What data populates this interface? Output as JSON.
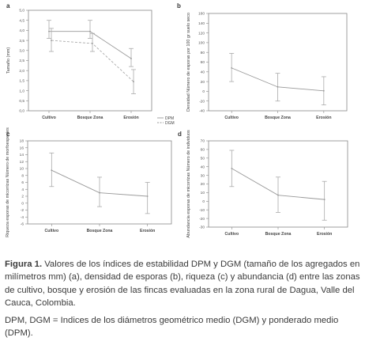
{
  "figure": {
    "caption_label": "Figura 1.",
    "caption_text": "Valores de los índices de estabilidad DPM y DGM (tamaño de los agregados en milímetros mm) (a), densidad de esporas (b), riqueza (c) y abundancia (d) entre las zonas de cultivo, bosque y erosión de las fincas evaluadas en la zona rural de Dagua, Valle del Cauca, Colombia.",
    "note": "DPM, DGM = Indices de los diámetros geométrico medio (DGM) y ponderado medio (DPM)."
  },
  "chart_data": [
    {
      "id": "a",
      "panel_label": "a",
      "type": "line",
      "ylabel": "Tamaño (mm)",
      "xlabel": "",
      "categories": [
        "Cultivo",
        "Bosque Zona",
        "Erosión"
      ],
      "ylim": [
        0,
        5
      ],
      "yticks": [
        "0,0",
        "0,5",
        "1,0",
        "1,5",
        "2,0",
        "2,5",
        "3,0",
        "3,5",
        "4,0",
        "4,5",
        "5,0"
      ],
      "legend": "right",
      "series": [
        {
          "name": "DPM",
          "values": [
            3.95,
            3.95,
            2.6
          ],
          "err_low": [
            3.6,
            3.6,
            2.2
          ],
          "err_high": [
            4.5,
            4.5,
            3.1
          ],
          "dash": false
        },
        {
          "name": "DGM",
          "values": [
            3.5,
            3.35,
            1.45
          ],
          "err_low": [
            2.95,
            2.95,
            0.85
          ],
          "err_high": [
            4.1,
            3.85,
            2.05
          ],
          "dash": true
        }
      ]
    },
    {
      "id": "b",
      "panel_label": "b",
      "type": "line",
      "ylabel": "Densidad Número de esporas por 100 gr suelo seco",
      "xlabel": "",
      "categories": [
        "Cultivo",
        "Bosque Zona",
        "Erosión"
      ],
      "ylim": [
        -40,
        160
      ],
      "yticks": [
        "-40",
        "-20",
        "0",
        "20",
        "40",
        "60",
        "80",
        "100",
        "120",
        "140",
        "160"
      ],
      "series": [
        {
          "name": "",
          "values": [
            48,
            9,
            1
          ],
          "err_low": [
            20,
            -20,
            -28
          ],
          "err_high": [
            78,
            37,
            30
          ],
          "dash": false
        }
      ]
    },
    {
      "id": "c",
      "panel_label": "c",
      "type": "line",
      "ylabel": "Riqueza esporas de micorrizas Número de morfoespecies",
      "xlabel": "",
      "categories": [
        "Cultivo",
        "Bosque Zona",
        "Erosión"
      ],
      "ylim": [
        -6,
        18
      ],
      "yticks": [
        "-6",
        "-4",
        "-2",
        "0",
        "2",
        "4",
        "6",
        "8",
        "10",
        "12",
        "14",
        "16",
        "18"
      ],
      "series": [
        {
          "name": "",
          "values": [
            9.5,
            3.0,
            2.0
          ],
          "err_low": [
            4.8,
            -1.0,
            -3.0
          ],
          "err_high": [
            14.5,
            7.5,
            6.0
          ],
          "dash": false
        }
      ]
    },
    {
      "id": "d",
      "panel_label": "d",
      "type": "line",
      "ylabel": "Abundancia esporas de micorrizas Número de individuos",
      "xlabel": "",
      "categories": [
        "Cultivo",
        "Bosque Zona",
        "Erosión"
      ],
      "ylim": [
        -30,
        70
      ],
      "yticks": [
        "-30",
        "-20",
        "-10",
        "0",
        "10",
        "20",
        "30",
        "40",
        "50",
        "60",
        "70"
      ],
      "series": [
        {
          "name": "",
          "values": [
            38,
            7,
            2
          ],
          "err_low": [
            17,
            -13,
            -22
          ],
          "err_high": [
            59,
            28,
            23
          ],
          "dash": false
        }
      ]
    }
  ]
}
